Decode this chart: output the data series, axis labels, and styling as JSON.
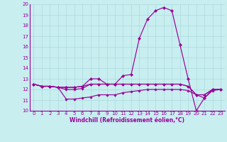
{
  "xlabel": "Windchill (Refroidissement éolien,°C)",
  "bg_color": "#c8eef0",
  "line_color": "#990099",
  "grid_color": "#b0dde0",
  "xlim": [
    -0.5,
    23.5
  ],
  "ylim": [
    10,
    20
  ],
  "xticks": [
    0,
    1,
    2,
    3,
    4,
    5,
    6,
    7,
    8,
    9,
    10,
    11,
    12,
    13,
    14,
    15,
    16,
    17,
    18,
    19,
    20,
    21,
    22,
    23
  ],
  "yticks": [
    10,
    11,
    12,
    13,
    14,
    15,
    16,
    17,
    18,
    19,
    20
  ],
  "series": [
    [
      12.5,
      12.3,
      12.3,
      12.2,
      12.2,
      12.2,
      12.3,
      13.0,
      13.0,
      12.5,
      12.5,
      13.3,
      13.4,
      16.8,
      18.6,
      19.4,
      19.7,
      19.4,
      16.2,
      13.0,
      10.0,
      11.2,
      12.0,
      12.0
    ],
    [
      12.5,
      12.3,
      12.3,
      12.2,
      11.1,
      11.1,
      11.2,
      11.3,
      11.5,
      11.5,
      11.5,
      11.7,
      11.8,
      11.9,
      12.0,
      12.0,
      12.0,
      12.0,
      12.0,
      11.9,
      11.5,
      11.2,
      11.9,
      12.0
    ],
    [
      12.5,
      12.3,
      12.3,
      12.2,
      12.2,
      12.2,
      12.3,
      12.5,
      12.5,
      12.5,
      12.5,
      12.5,
      12.5,
      12.5,
      12.5,
      12.5,
      12.5,
      12.5,
      12.5,
      12.3,
      11.5,
      11.5,
      12.0,
      12.0
    ],
    [
      12.5,
      12.3,
      12.3,
      12.2,
      12.0,
      12.0,
      12.1,
      12.5,
      12.5,
      12.5,
      12.5,
      12.5,
      12.5,
      12.5,
      12.5,
      12.5,
      12.5,
      12.5,
      12.5,
      12.3,
      11.5,
      11.5,
      12.0,
      12.0
    ]
  ]
}
